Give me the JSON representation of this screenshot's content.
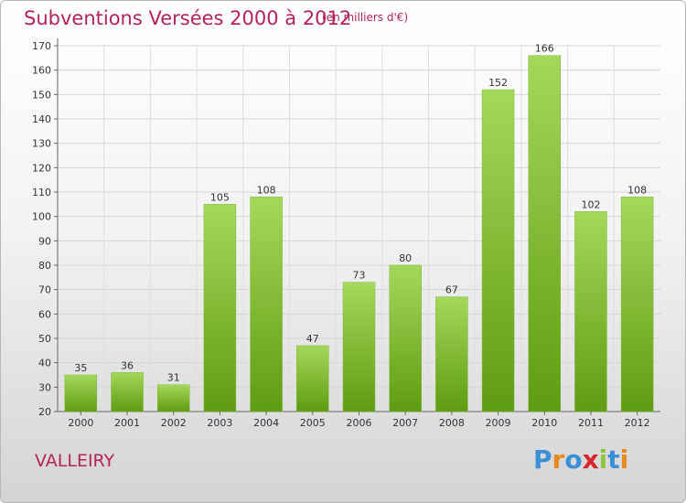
{
  "header": {
    "title": "Subventions Versées 2000 à 2012",
    "subtitle": "(en milliers d'€)"
  },
  "footer": {
    "commune": "VALLEIRY",
    "logo_text": "Proxiti"
  },
  "colors": {
    "title": "#b5235a",
    "bar_top": "#9fd34f",
    "bar_bottom": "#5f9e14",
    "logo_letters": [
      "#3a8fd6",
      "#e8891b",
      "#3a8fd6",
      "#d8242a",
      "#8cc63f",
      "#3a8fd6",
      "#e8891b"
    ]
  },
  "chart_data": {
    "type": "bar",
    "categories": [
      "2000",
      "2001",
      "2002",
      "2003",
      "2004",
      "2005",
      "2006",
      "2007",
      "2008",
      "2009",
      "2010",
      "2011",
      "2012"
    ],
    "values": [
      35,
      36,
      31,
      105,
      108,
      47,
      73,
      80,
      67,
      152,
      166,
      102,
      108
    ],
    "data_labels": [
      "35",
      "36",
      "31",
      "105",
      "108",
      "47",
      "73",
      "80",
      "67",
      "152",
      "166",
      "102",
      "108"
    ],
    "title": "Subventions Versées 2000 à 2012",
    "xlabel": "",
    "ylabel": "",
    "ylim": [
      20,
      170
    ],
    "yticks": [
      20,
      30,
      40,
      50,
      60,
      70,
      80,
      90,
      100,
      110,
      120,
      130,
      140,
      150,
      160,
      170
    ],
    "grid": true,
    "legend": "none"
  }
}
